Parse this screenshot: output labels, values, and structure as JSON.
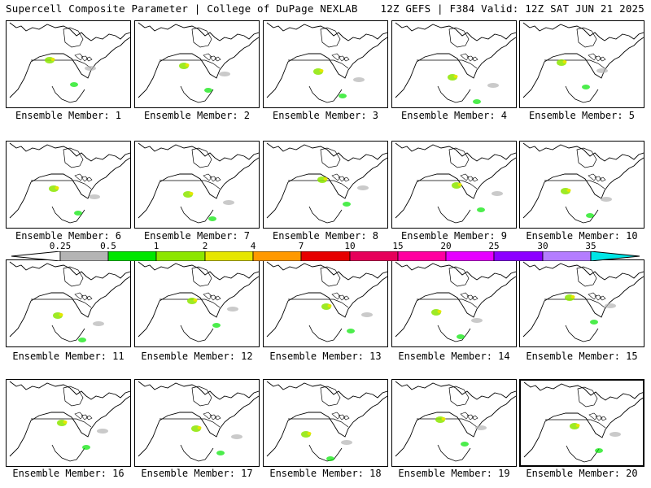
{
  "header": {
    "title_left": "Supercell Composite Parameter | College of DuPage NEXLAB",
    "title_right": "12Z GEFS | F384 Valid: 12Z SAT JUN 21 2025"
  },
  "panels": [
    {
      "label": "Ensemble Member: 1"
    },
    {
      "label": "Ensemble Member: 2"
    },
    {
      "label": "Ensemble Member: 3"
    },
    {
      "label": "Ensemble Member: 4"
    },
    {
      "label": "Ensemble Member: 5"
    },
    {
      "label": "Ensemble Member: 6"
    },
    {
      "label": "Ensemble Member: 7"
    },
    {
      "label": "Ensemble Member: 8"
    },
    {
      "label": "Ensemble Member: 9"
    },
    {
      "label": "Ensemble Member: 10"
    },
    {
      "label": "Ensemble Member: 11"
    },
    {
      "label": "Ensemble Member: 12"
    },
    {
      "label": "Ensemble Member: 13"
    },
    {
      "label": "Ensemble Member: 14"
    },
    {
      "label": "Ensemble Member: 15"
    },
    {
      "label": "Ensemble Member: 16"
    },
    {
      "label": "Ensemble Member: 17"
    },
    {
      "label": "Ensemble Member: 18"
    },
    {
      "label": "Ensemble Member: 19"
    },
    {
      "label": "Ensemble Member: 20"
    }
  ],
  "colorbar": {
    "ticks": [
      "0.25",
      "0.5",
      "1",
      "2",
      "4",
      "7",
      "10",
      "15",
      "20",
      "25",
      "30",
      "35"
    ],
    "colors": [
      "#b4b4b4",
      "#00e600",
      "#8ce600",
      "#e6e600",
      "#ff9900",
      "#e60000",
      "#e6005a",
      "#ff00a0",
      "#e600ff",
      "#8c00ff",
      "#b47dff",
      "#00e6e6"
    ]
  },
  "selected_panel": "Ensemble Member: 20"
}
